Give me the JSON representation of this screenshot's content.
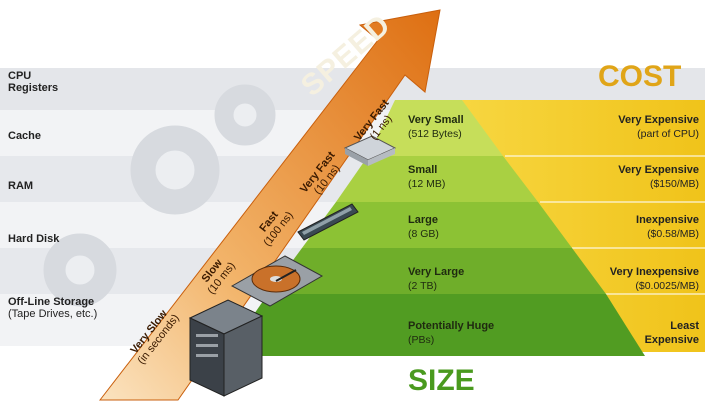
{
  "diagram": {
    "speed_title": "SPEED",
    "cost_title": "COST",
    "size_title": "SIZE"
  },
  "tiers": [
    {
      "name": "CPU",
      "name_line2": "Registers",
      "size": "Very Small",
      "size_detail": "(512 Bytes)",
      "speed": "Very Fast",
      "speed_detail": "(1 ns)",
      "cost": "Very Expensive",
      "cost_detail": "(part of CPU)"
    },
    {
      "name": "Cache",
      "name_line2": "",
      "size": "Small",
      "size_detail": "(12 MB)",
      "speed": "Very Fast",
      "speed_detail": "(10 ns)",
      "cost": "Very Expensive",
      "cost_detail": "($150/MB)"
    },
    {
      "name": "RAM",
      "name_line2": "",
      "size": "Large",
      "size_detail": "(8 GB)",
      "speed": "Fast",
      "speed_detail": "(100 ns)",
      "cost": "Inexpensive",
      "cost_detail": "($0.58/MB)"
    },
    {
      "name": "Hard Disk",
      "name_line2": "",
      "size": "Very Large",
      "size_detail": "(2 TB)",
      "speed": "Slow",
      "speed_detail": "(10 ms)",
      "cost": "Very Inexpensive",
      "cost_detail": "($0.0025/MB)"
    },
    {
      "name": "Off-Line Storage",
      "name_line2": "(Tape Drives, etc.)",
      "size": "Potentially Huge",
      "size_detail": "(PBs)",
      "speed": "Very Slow",
      "speed_detail": "(in seconds)",
      "cost": "Least",
      "cost_detail": "Expensive"
    }
  ],
  "colors": {
    "speed_arrow": "#e07a18",
    "cost_band": "#f0c419",
    "pyramid_top": "#b6d64a",
    "pyramid_bottom": "#4e9a24",
    "band_light": "#e6e8ec",
    "gear": "#d9dce0"
  }
}
